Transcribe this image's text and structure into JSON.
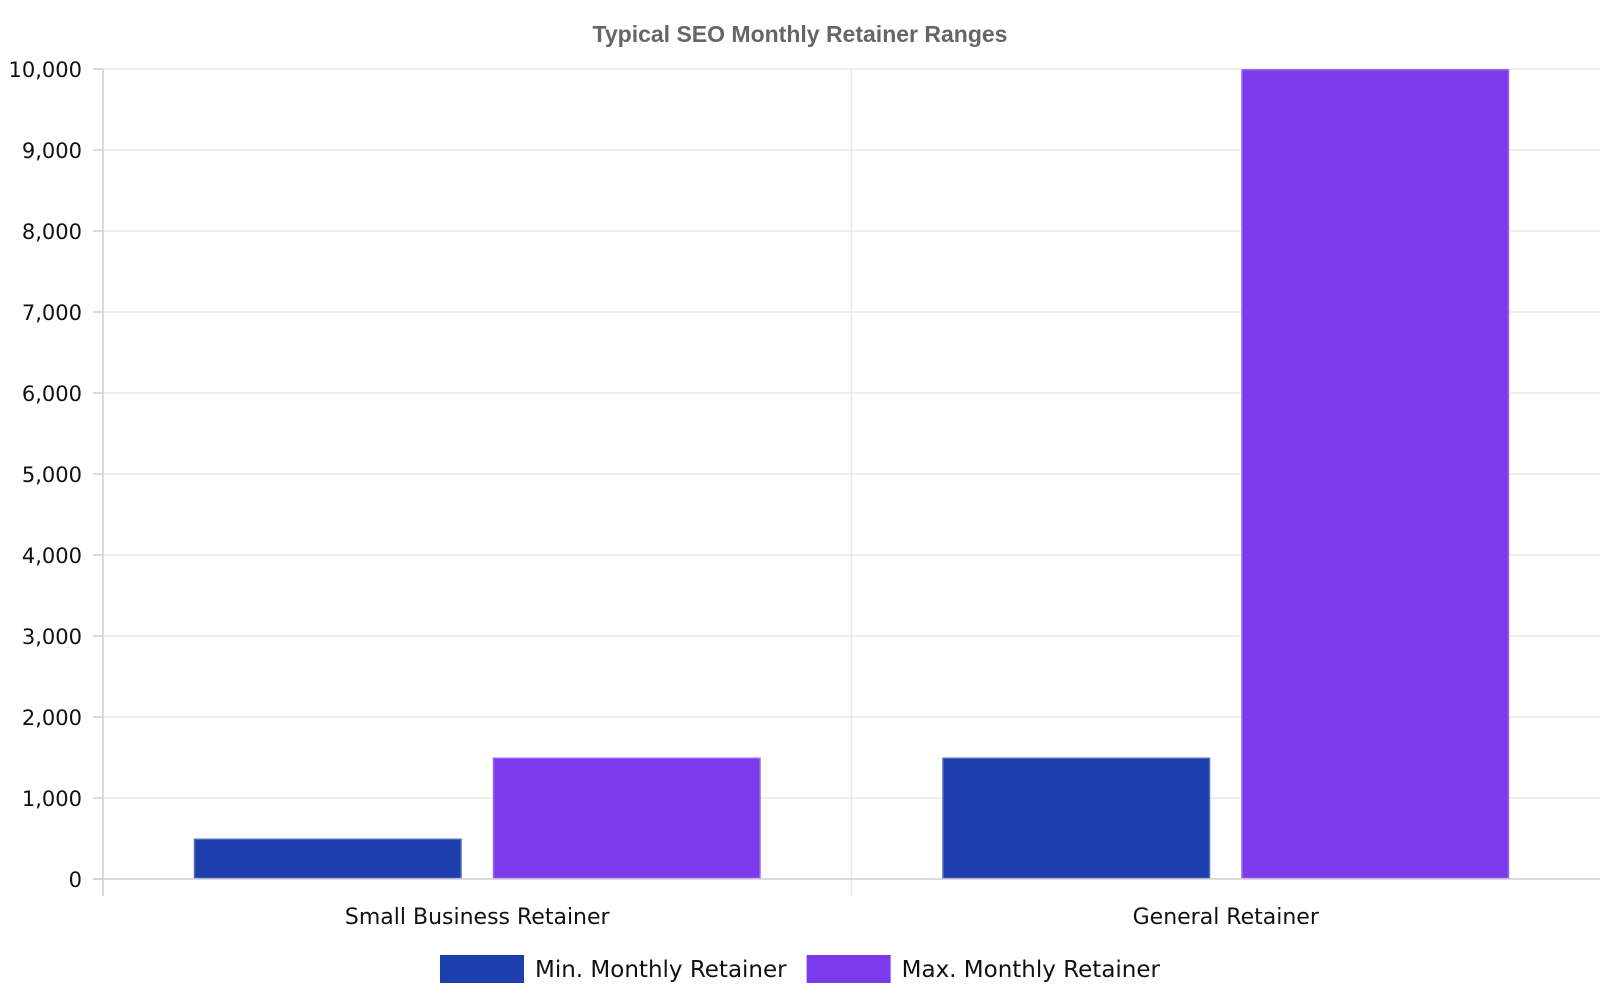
{
  "chart_data": {
    "type": "bar",
    "title": "Typical SEO Monthly Retainer Ranges",
    "xlabel": "",
    "ylabel": "",
    "categories": [
      "Small Business Retainer",
      "General Retainer"
    ],
    "series": [
      {
        "name": "Min. Monthly Retainer",
        "values": [
          500,
          1500
        ],
        "color": "#1e40af"
      },
      {
        "name": "Max. Monthly Retainer",
        "values": [
          1500,
          10000
        ],
        "color": "#7c3aed"
      }
    ],
    "ylim": [
      0,
      10000
    ],
    "yticks": [
      "0",
      "1,000",
      "2,000",
      "3,000",
      "4,000",
      "5,000",
      "6,000",
      "7,000",
      "8,000",
      "9,000",
      "10,000"
    ],
    "grid": true,
    "legend": "bottom-center"
  }
}
